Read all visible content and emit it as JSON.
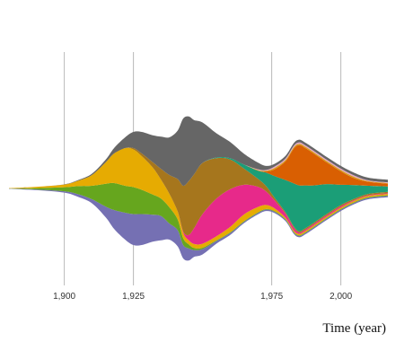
{
  "chart_data": {
    "type": "area",
    "subtype": "streamgraph",
    "title": "",
    "xlabel": "Time (year)",
    "ylabel": "",
    "xlim": [
      1880,
      2017
    ],
    "xticks": [
      {
        "value": 1900,
        "label": "1,900"
      },
      {
        "value": 1925,
        "label": "1,925"
      },
      {
        "value": 1975,
        "label": "1,975"
      },
      {
        "value": 2000,
        "label": "2,000"
      }
    ],
    "grid": "vertical",
    "legend": "none",
    "x": [
      1880,
      1890,
      1900,
      1905,
      1910,
      1915,
      1918,
      1922,
      1925,
      1928,
      1932,
      1935,
      1938,
      1941,
      1943,
      1945,
      1947,
      1950,
      1955,
      1960,
      1965,
      1970,
      1973,
      1976,
      1980,
      1983,
      1985,
      1987,
      1990,
      1995,
      2000,
      2005,
      2010,
      2017
    ],
    "series": [
      {
        "color": "#7570b3",
        "values": [
          0.2,
          0.5,
          1,
          2,
          3,
          8,
          14,
          20,
          23,
          23,
          20,
          18,
          12,
          12,
          10,
          9,
          5,
          4,
          2,
          1.5,
          1,
          1,
          1,
          1,
          1,
          1,
          1,
          1,
          1,
          1,
          1,
          1,
          1,
          1
        ]
      },
      {
        "color": "#66a61e",
        "values": [
          0.2,
          1,
          3,
          6,
          10,
          17,
          20,
          20,
          20,
          18,
          15,
          13,
          12,
          8,
          5,
          3,
          1.5,
          1,
          0.5,
          0.5,
          0.5,
          0.5,
          0.5,
          0.5,
          0.5,
          0.5,
          0.5,
          0.5,
          0.5,
          0.5,
          0.5,
          0.5,
          0.5,
          0.5
        ]
      },
      {
        "color": "#e6ab02",
        "values": [
          0.2,
          1,
          2,
          4,
          8,
          16,
          22,
          28,
          28,
          25,
          20,
          14,
          10,
          6,
          4,
          3,
          3,
          3,
          3,
          4,
          5,
          4,
          3,
          2,
          1,
          1,
          1,
          1,
          1,
          1,
          1,
          1,
          1,
          1
        ]
      },
      {
        "color": "#e7298a",
        "values": [
          0,
          0,
          0,
          0,
          0,
          0,
          0,
          0,
          0,
          0,
          0,
          0,
          0,
          0,
          1,
          4,
          12,
          22,
          28,
          28,
          22,
          15,
          10,
          6,
          3,
          2,
          1,
          1,
          1,
          1,
          1,
          0.5,
          0.5,
          0.5
        ]
      },
      {
        "color": "#a6761d",
        "values": [
          0,
          0,
          0,
          0,
          0,
          0,
          0,
          0,
          1,
          2,
          4,
          8,
          14,
          24,
          34,
          40,
          40,
          38,
          30,
          22,
          12,
          6,
          4,
          2,
          1,
          1,
          1,
          1,
          1,
          1,
          1,
          1,
          1,
          1
        ]
      },
      {
        "color": "#1b9e77",
        "values": [
          0,
          0,
          0,
          0,
          0,
          0,
          0,
          0,
          0,
          0,
          0,
          0,
          0,
          0,
          0,
          0,
          0,
          0,
          0.5,
          1,
          3,
          6,
          10,
          16,
          24,
          32,
          34,
          32,
          28,
          22,
          15,
          10,
          6,
          4
        ]
      },
      {
        "color": "#d95f02",
        "values": [
          0,
          0,
          0,
          0,
          0,
          0,
          0,
          0,
          0,
          0,
          0,
          0,
          0,
          0,
          0,
          0,
          0,
          0,
          0,
          0,
          0,
          0,
          1,
          5,
          14,
          26,
          30,
          28,
          24,
          16,
          10,
          5,
          3,
          2
        ]
      },
      {
        "color": "#d4a017",
        "values": [
          0,
          0,
          0,
          0,
          0,
          0,
          0,
          0,
          0,
          0,
          0,
          0,
          0,
          0,
          0,
          0,
          0,
          0,
          0,
          0,
          0,
          0.5,
          0.5,
          1,
          1,
          1,
          1,
          1,
          1,
          1,
          1,
          1,
          0.5,
          0.5
        ]
      },
      {
        "color": "#e7a4c8",
        "values": [
          0,
          0,
          0,
          0,
          0,
          0,
          0,
          0,
          0,
          0,
          0,
          0,
          0,
          0,
          0,
          0,
          0,
          0,
          0,
          0,
          0,
          0.5,
          0.5,
          1,
          1,
          1,
          1,
          1,
          1,
          1,
          1,
          1,
          0.5,
          0.5
        ]
      },
      {
        "color": "#666666",
        "values": [
          0,
          0,
          0.2,
          0.5,
          1,
          2,
          4,
          8,
          12,
          16,
          20,
          24,
          28,
          36,
          50,
          48,
          40,
          30,
          18,
          12,
          8,
          5,
          3,
          2,
          2,
          2,
          2,
          2,
          2,
          2,
          2,
          2,
          2,
          2
        ]
      }
    ]
  }
}
